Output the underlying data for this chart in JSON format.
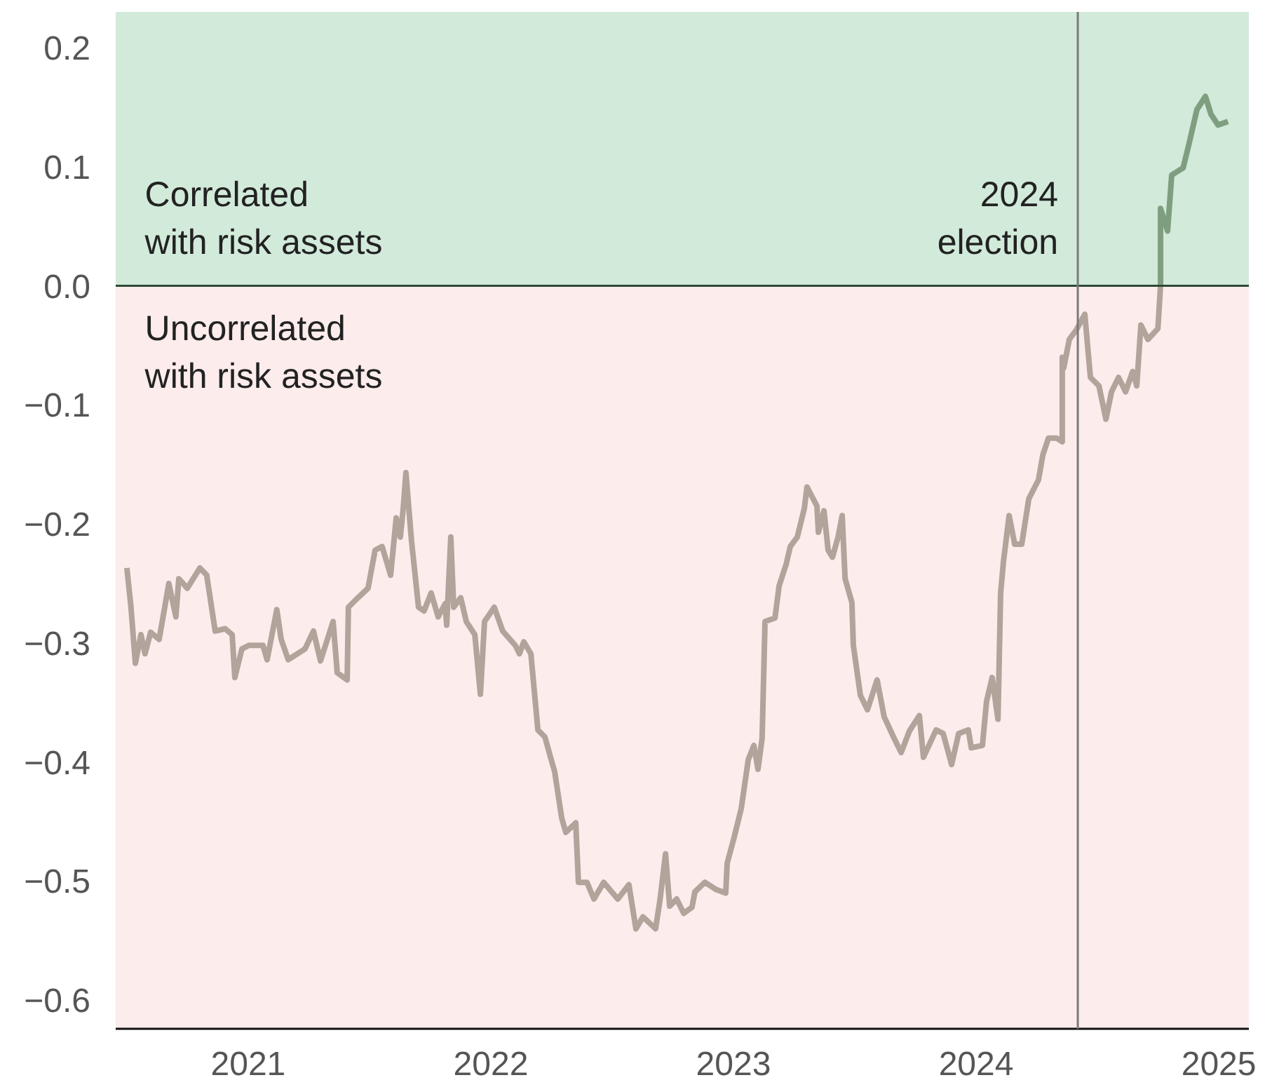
{
  "chart_data": {
    "type": "line",
    "xlim": [
      2020.954,
      2025.624
    ],
    "xticks": [
      {
        "value": 2021.5,
        "label": "2021"
      },
      {
        "value": 2022.5,
        "label": "2022"
      },
      {
        "value": 2023.5,
        "label": "2023"
      },
      {
        "value": 2024.5,
        "label": "2024"
      },
      {
        "value": 2025.5,
        "label": "2025"
      }
    ],
    "ylim": [
      -0.624,
      0.23
    ],
    "yticks": [
      0.2,
      0.1,
      {
        "value": 0,
        "label": "0.0"
      },
      -0.1,
      -0.2,
      -0.3,
      -0.4,
      -0.5,
      -0.6
    ],
    "line_style": "solid",
    "marker": "none",
    "bands": [
      {
        "axis": "y",
        "from": 0,
        "to": 0.23,
        "label": "Correlated\nwith risk assets",
        "color": "#d2eada"
      },
      {
        "axis": "y",
        "from": -0.624,
        "to": 0,
        "label": "Uncorrelated\nwith risk assets",
        "color": "#fdecec"
      }
    ],
    "ref_lines": [
      {
        "axis": "y",
        "value": 0,
        "color": "#2f4a35"
      },
      {
        "axis": "x",
        "value": 2024.919,
        "label": "2024\nelection",
        "color": "#7a7a7a"
      }
    ],
    "series": [
      {
        "color": "#b2a39b",
        "x": [
          2021.0,
          2021.017,
          2021.035,
          2021.058,
          2021.075,
          2021.098,
          2021.133,
          2021.156,
          2021.173,
          2021.202,
          2021.214,
          2021.249,
          2021.301,
          2021.329,
          2021.364,
          2021.405,
          2021.434,
          2021.445,
          2021.474,
          2021.503,
          2021.561,
          2021.578,
          2021.618,
          2021.636,
          2021.665,
          2021.734,
          2021.769,
          2021.798,
          2021.85,
          2021.867,
          2021.908,
          2021.913,
          2021.942,
          2021.994,
          2022.023,
          2022.052,
          2022.087,
          2022.11,
          2022.127,
          2022.139,
          2022.15,
          2022.173,
          2022.202,
          2022.225,
          2022.254,
          2022.283,
          2022.312,
          2022.318,
          2022.335,
          2022.347,
          2022.376,
          2022.399,
          2022.434,
          2022.457,
          2022.474,
          2022.514,
          2022.549,
          2022.601,
          2022.618,
          2022.636,
          2022.665,
          2022.694,
          2022.723,
          2022.746,
          2022.763,
          2022.792,
          2022.809,
          2022.85,
          2022.861,
          2022.896,
          2022.925,
          2022.965,
          2023.023,
          2023.069,
          2023.098,
          2023.127,
          2023.179,
          2023.197,
          2023.22,
          2023.237,
          2023.266,
          2023.295,
          2023.329,
          2023.341,
          2023.382,
          2023.428,
          2023.468,
          2023.474,
          2023.503,
          2023.532,
          2023.561,
          2023.584,
          2023.601,
          2023.618,
          2023.63,
          2023.671,
          2023.688,
          2023.717,
          2023.734,
          2023.763,
          2023.792,
          2023.803,
          2023.844,
          2023.85,
          2023.873,
          2023.89,
          2023.908,
          2023.931,
          2023.948,
          2023.96,
          2023.988,
          2023.994,
          2024.023,
          2024.052,
          2024.092,
          2024.121,
          2024.162,
          2024.191,
          2024.225,
          2024.266,
          2024.283,
          2024.335,
          2024.364,
          2024.399,
          2024.428,
          2024.468,
          2024.48,
          2024.526,
          2024.543,
          2024.566,
          2024.59,
          2024.601,
          2024.613,
          2024.636,
          2024.659,
          2024.688,
          2024.717,
          2024.757,
          2024.775,
          2024.798,
          2024.832,
          2024.855,
          2024.855,
          2024.861,
          2024.884,
          2024.913,
          2024.948,
          2024.971,
          2025.006,
          2025.035,
          2025.058,
          2025.087,
          2025.116,
          2025.145,
          2025.162,
          2025.179,
          2025.208,
          2025.249,
          2025.26
        ],
        "values": [
          -0.237,
          -0.27,
          -0.317,
          -0.293,
          -0.309,
          -0.291,
          -0.297,
          -0.27,
          -0.25,
          -0.278,
          -0.246,
          -0.254,
          -0.237,
          -0.243,
          -0.29,
          -0.288,
          -0.293,
          -0.329,
          -0.305,
          -0.302,
          -0.302,
          -0.314,
          -0.272,
          -0.297,
          -0.314,
          -0.305,
          -0.29,
          -0.315,
          -0.282,
          -0.325,
          -0.331,
          -0.27,
          -0.264,
          -0.254,
          -0.222,
          -0.219,
          -0.243,
          -0.195,
          -0.211,
          -0.187,
          -0.157,
          -0.214,
          -0.27,
          -0.273,
          -0.258,
          -0.278,
          -0.267,
          -0.285,
          -0.211,
          -0.27,
          -0.262,
          -0.282,
          -0.293,
          -0.343,
          -0.282,
          -0.27,
          -0.29,
          -0.302,
          -0.309,
          -0.299,
          -0.309,
          -0.373,
          -0.379,
          -0.396,
          -0.408,
          -0.447,
          -0.459,
          -0.451,
          -0.501,
          -0.501,
          -0.515,
          -0.501,
          -0.515,
          -0.503,
          -0.54,
          -0.53,
          -0.54,
          -0.516,
          -0.477,
          -0.521,
          -0.515,
          -0.527,
          -0.522,
          -0.509,
          -0.501,
          -0.507,
          -0.51,
          -0.485,
          -0.463,
          -0.439,
          -0.398,
          -0.386,
          -0.406,
          -0.38,
          -0.282,
          -0.279,
          -0.252,
          -0.234,
          -0.219,
          -0.211,
          -0.187,
          -0.169,
          -0.185,
          -0.207,
          -0.189,
          -0.222,
          -0.228,
          -0.211,
          -0.193,
          -0.246,
          -0.266,
          -0.302,
          -0.344,
          -0.356,
          -0.331,
          -0.362,
          -0.38,
          -0.392,
          -0.374,
          -0.361,
          -0.396,
          -0.373,
          -0.376,
          -0.402,
          -0.376,
          -0.373,
          -0.388,
          -0.386,
          -0.349,
          -0.329,
          -0.364,
          -0.258,
          -0.231,
          -0.193,
          -0.217,
          -0.217,
          -0.179,
          -0.163,
          -0.142,
          -0.128,
          -0.128,
          -0.131,
          -0.06,
          -0.069,
          -0.045,
          -0.037,
          -0.024,
          -0.077,
          -0.084,
          -0.112,
          -0.089,
          -0.077,
          -0.089,
          -0.072,
          -0.084,
          -0.033,
          -0.045,
          -0.036,
          0
        ]
      },
      {
        "color": "#7f9e80",
        "x": [
          2025.26,
          2025.26,
          2025.289,
          2025.306,
          2025.353,
          2025.376,
          2025.41,
          2025.445,
          2025.468,
          2025.497,
          2025.538
        ],
        "values": [
          0,
          0.065,
          0.046,
          0.093,
          0.099,
          0.118,
          0.148,
          0.159,
          0.144,
          0.135,
          0.138
        ]
      }
    ]
  }
}
